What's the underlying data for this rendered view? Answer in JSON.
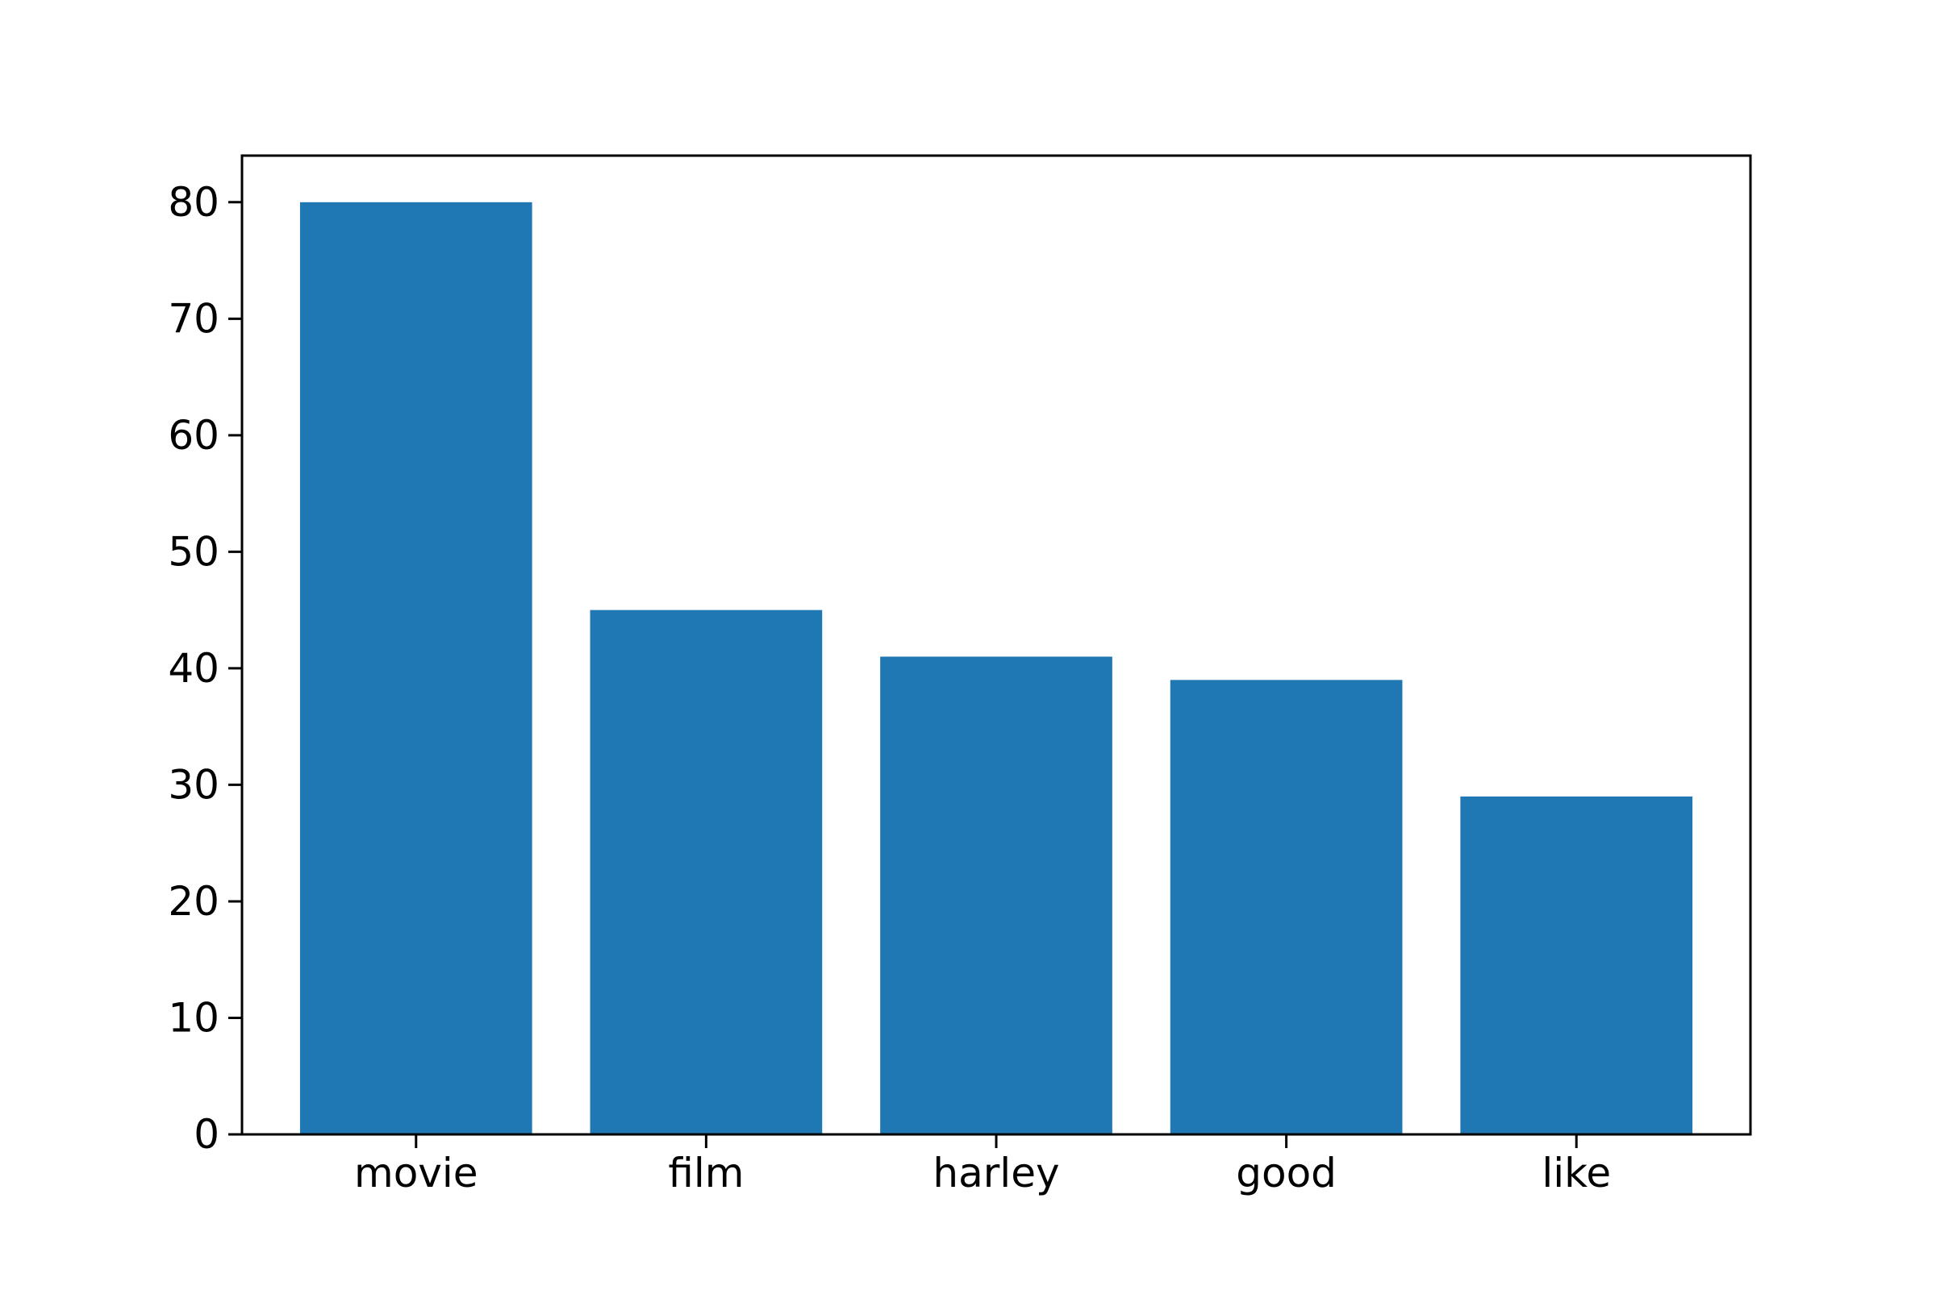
{
  "chart_data": {
    "type": "bar",
    "title": "",
    "xlabel": "",
    "ylabel": "",
    "categories": [
      "movie",
      "film",
      "harley",
      "good",
      "like"
    ],
    "values": [
      80,
      45,
      41,
      39,
      29
    ],
    "ylim": [
      0,
      84
    ],
    "yticks": [
      0,
      10,
      20,
      30,
      40,
      50,
      60,
      70,
      80
    ],
    "ytick_labels": [
      "0",
      "10",
      "20",
      "30",
      "40",
      "50",
      "60",
      "70",
      "80"
    ],
    "bar_color": "#1f77b4",
    "grid": false,
    "legend": "none"
  }
}
